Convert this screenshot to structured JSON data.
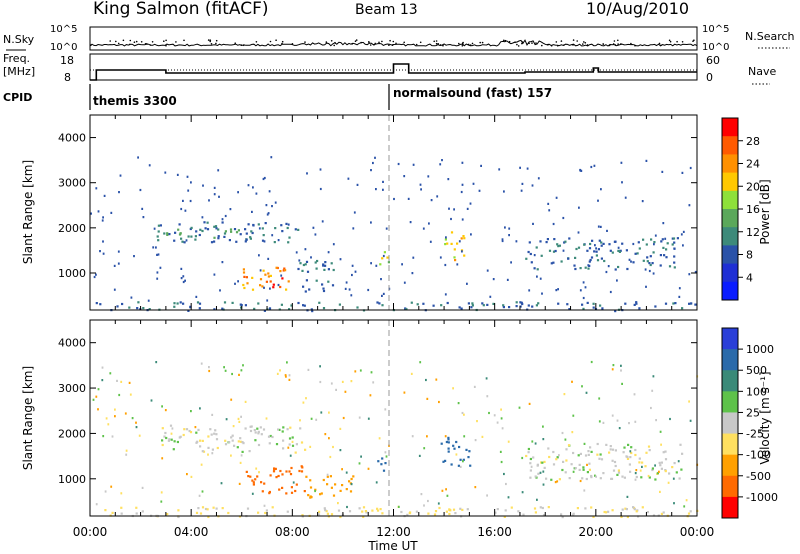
{
  "header": {
    "station": "King Salmon (fitACF)",
    "beam": "Beam 13",
    "date": "10/Aug/2010"
  },
  "status_panels": {
    "nsky_label": "N.Sky",
    "nsky_ticks": [
      "10^5",
      "10^0"
    ],
    "nsearch_label": "N.Search",
    "freq_label_1": "Freq.",
    "freq_label_2": "[MHz]",
    "freq_ticks": [
      "18",
      "8"
    ],
    "nave_label": "Nave",
    "nave_ticks": [
      "60",
      "0"
    ],
    "cpid_label": "CPID",
    "cpid_segments": [
      {
        "name": "themis 3300",
        "start_hour": 0.0
      },
      {
        "name": "normalsound (fast) 157",
        "start_hour": 12.0
      }
    ],
    "freq_mhz_steps": [
      {
        "from_hour": 0.0,
        "to_hour": 0.25,
        "value": 8
      },
      {
        "from_hour": 0.25,
        "to_hour": 3.0,
        "value": 13
      },
      {
        "from_hour": 3.0,
        "to_hour": 12.0,
        "value": 11.5
      },
      {
        "from_hour": 12.0,
        "to_hour": 12.6,
        "value": 16
      },
      {
        "from_hour": 12.6,
        "to_hour": 17.2,
        "value": 11.5
      },
      {
        "from_hour": 17.2,
        "to_hour": 19.9,
        "value": 12
      },
      {
        "from_hour": 19.9,
        "to_hour": 20.1,
        "value": 14
      },
      {
        "from_hour": 20.1,
        "to_hour": 24.0,
        "value": 12
      }
    ]
  },
  "x_axis": {
    "label": "Time UT",
    "ticks": [
      "00:00",
      "04:00",
      "08:00",
      "12:00",
      "16:00",
      "20:00",
      "00:00"
    ]
  },
  "colorbars": {
    "power": {
      "label": "Power [dB]",
      "ticks": [
        "28",
        "24",
        "20",
        "16",
        "12",
        "8",
        "4"
      ],
      "colors": [
        "#ff0000",
        "#ff5a00",
        "#ff9000",
        "#ffc800",
        "#8ee03a",
        "#5ba85b",
        "#3d8a7a",
        "#2a52a8",
        "#1f2fd4",
        "#0a1cff"
      ]
    },
    "velocity": {
      "label": "Velocity [m s⁻¹]",
      "ticks": [
        "1000",
        "500",
        "100",
        "25",
        "-25",
        "-100",
        "-500",
        "-1000"
      ],
      "colors": [
        "#2a3fd8",
        "#2a6aaa",
        "#3a8a78",
        "#5ec24a",
        "#c8c8c8",
        "#ffe060",
        "#ffa000",
        "#ff6a00",
        "#ff0000"
      ]
    }
  },
  "chart_data": [
    {
      "type": "heatmap",
      "title": "",
      "ylabel": "Slant Range [km]",
      "xlabel": "Time UT",
      "xlim": [
        0,
        24
      ],
      "ylim": [
        180,
        4500
      ],
      "yticks": [
        "4000",
        "3000",
        "2000",
        "1000"
      ],
      "colorbar": "Power [dB]",
      "regions": [
        {
          "t0": 2.6,
          "t1": 8.2,
          "r0": 1700,
          "r1": 2150,
          "level": 8
        },
        {
          "t0": 3.0,
          "t1": 6.5,
          "r0": 1800,
          "r1": 2000,
          "level": 12
        },
        {
          "t0": 6.0,
          "t1": 8.0,
          "r0": 650,
          "r1": 1150,
          "level": 24
        },
        {
          "t0": 6.6,
          "t1": 7.6,
          "r0": 700,
          "r1": 950,
          "level": 28
        },
        {
          "t0": 8.2,
          "t1": 9.8,
          "r0": 600,
          "r1": 1300,
          "level": 8
        },
        {
          "t0": 11.3,
          "t1": 11.8,
          "r0": 1200,
          "r1": 1600,
          "level": 16
        },
        {
          "t0": 14.0,
          "t1": 14.8,
          "r0": 1300,
          "r1": 2000,
          "level": 20
        },
        {
          "t0": 17.2,
          "t1": 23.2,
          "r0": 1100,
          "r1": 1800,
          "level": 8
        },
        {
          "t0": 0.0,
          "t1": 24.0,
          "r0": 180,
          "r1": 380,
          "level": 8
        }
      ]
    },
    {
      "type": "heatmap",
      "title": "",
      "ylabel": "Slant Range [km]",
      "xlabel": "Time UT",
      "xlim": [
        0,
        24
      ],
      "ylim": [
        180,
        4500
      ],
      "yticks": [
        "4000",
        "3000",
        "2000",
        "1000"
      ],
      "colorbar": "Velocity [m s⁻¹]",
      "regions": [
        {
          "t0": 2.6,
          "t1": 8.5,
          "r0": 1600,
          "r1": 2200,
          "level": 0
        },
        {
          "t0": 6.0,
          "t1": 8.5,
          "r0": 700,
          "r1": 1300,
          "level": -500
        },
        {
          "t0": 8.5,
          "t1": 10.5,
          "r0": 600,
          "r1": 1100,
          "level": -100
        },
        {
          "t0": 11.3,
          "t1": 11.8,
          "r0": 1200,
          "r1": 1600,
          "level": 500
        },
        {
          "t0": 13.8,
          "t1": 15.0,
          "r0": 1300,
          "r1": 2000,
          "level": 500
        },
        {
          "t0": 17.2,
          "t1": 23.5,
          "r0": 1000,
          "r1": 1800,
          "level": 0
        },
        {
          "t0": 0.0,
          "t1": 24.0,
          "r0": 180,
          "r1": 400,
          "level": -25
        }
      ]
    }
  ]
}
